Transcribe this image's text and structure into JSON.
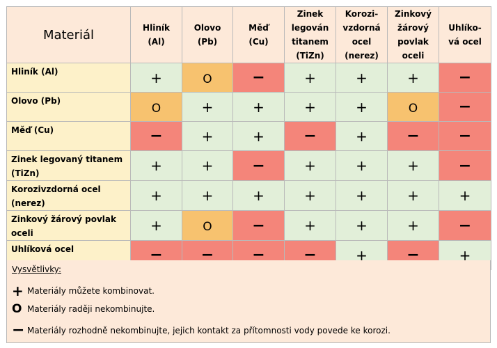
{
  "corner_label": "Materiál",
  "columns": [
    "Hliník\n(Al)",
    "Olovo\n(Pb)",
    "Měď\n(Cu)",
    "Zinek\nlegován\ntitanem\n(TiZn)",
    "Korozi-\nvzdorná\nocel\n(nerez)",
    "Zinkový\nžárový\npovlak\noceli",
    "Uhlíko-\nvá ocel"
  ],
  "rows": [
    {
      "label": "Hliník (Al)",
      "cells": [
        "+",
        "O",
        "−",
        "+",
        "+",
        "+",
        "−"
      ]
    },
    {
      "label": "Olovo (Pb)",
      "cells": [
        "O",
        "+",
        "+",
        "+",
        "+",
        "O",
        "−"
      ]
    },
    {
      "label": "Měď (Cu)",
      "cells": [
        "−",
        "+",
        "+",
        "−",
        "+",
        "−",
        "−"
      ]
    },
    {
      "label": "Zinek legovaný titanem (TiZn)",
      "cells": [
        "+",
        "+",
        "−",
        "+",
        "+",
        "+",
        "−"
      ]
    },
    {
      "label": "Korozivzdorná ocel (nerez)",
      "cells": [
        "+",
        "+",
        "+",
        "+",
        "+",
        "+",
        "+"
      ]
    },
    {
      "label": "Zinkový žárový povlak oceli",
      "cells": [
        "+",
        "O",
        "−",
        "+",
        "+",
        "+",
        "−"
      ]
    },
    {
      "label": "Uhlíková ocel",
      "cells": [
        "−",
        "−",
        "−",
        "−",
        "+",
        "−",
        "+"
      ]
    }
  ],
  "legend": {
    "title": "Vysvětlivky:",
    "items": [
      {
        "symbol": "+",
        "text": "Materiály můžete kombinovat."
      },
      {
        "symbol": "O",
        "text": "Materiály raději nekombinujte."
      },
      {
        "symbol": "−",
        "text": "Materiály rozhodně nekombinujte, jejich kontakt za přítomnosti vody povede ke korozi."
      }
    ]
  },
  "colors": {
    "header_bg": "#fde9d9",
    "row_header_bg": "#fdf1c9",
    "plus_bg": "#e2efd9",
    "circle_bg": "#f7c26f",
    "minus_bg": "#f4857a",
    "border": "#b9b9b9"
  }
}
